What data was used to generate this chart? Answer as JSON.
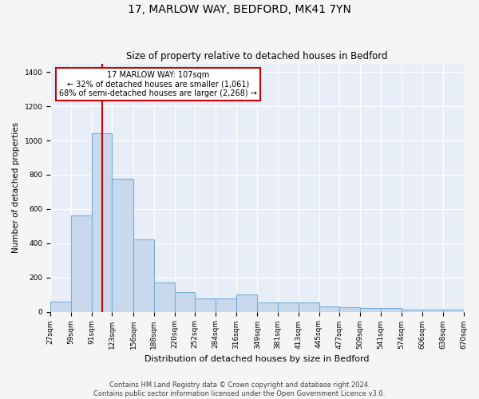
{
  "title": "17, MARLOW WAY, BEDFORD, MK41 7YN",
  "subtitle": "Size of property relative to detached houses in Bedford",
  "xlabel": "Distribution of detached houses by size in Bedford",
  "ylabel": "Number of detached properties",
  "bar_color": "#c8d9ee",
  "bar_edge_color": "#7aadd4",
  "vline_color": "#cc0000",
  "vline_x": 107,
  "annotation_text": "17 MARLOW WAY: 107sqm\n← 32% of detached houses are smaller (1,061)\n68% of semi-detached houses are larger (2,268) →",
  "annotation_box_color": "#ffffff",
  "annotation_box_edge_color": "#cc0000",
  "bin_edges": [
    27,
    59,
    91,
    123,
    156,
    188,
    220,
    252,
    284,
    316,
    349,
    381,
    413,
    445,
    477,
    509,
    541,
    574,
    606,
    638,
    670
  ],
  "bin_counts": [
    57,
    560,
    1040,
    775,
    420,
    170,
    115,
    75,
    75,
    100,
    55,
    55,
    55,
    30,
    25,
    20,
    20,
    10,
    10,
    10
  ],
  "ylim": [
    0,
    1450
  ],
  "yticks": [
    0,
    200,
    400,
    600,
    800,
    1000,
    1200,
    1400
  ],
  "plot_bg_color": "#e8eef8",
  "fig_bg_color": "#f5f5f5",
  "footer_text": "Contains HM Land Registry data © Crown copyright and database right 2024.\nContains public sector information licensed under the Open Government Licence v3.0.",
  "grid_color": "#ffffff",
  "title_fontsize": 10,
  "subtitle_fontsize": 8.5,
  "tick_fontsize": 6.5,
  "ylabel_fontsize": 7.5,
  "xlabel_fontsize": 8
}
